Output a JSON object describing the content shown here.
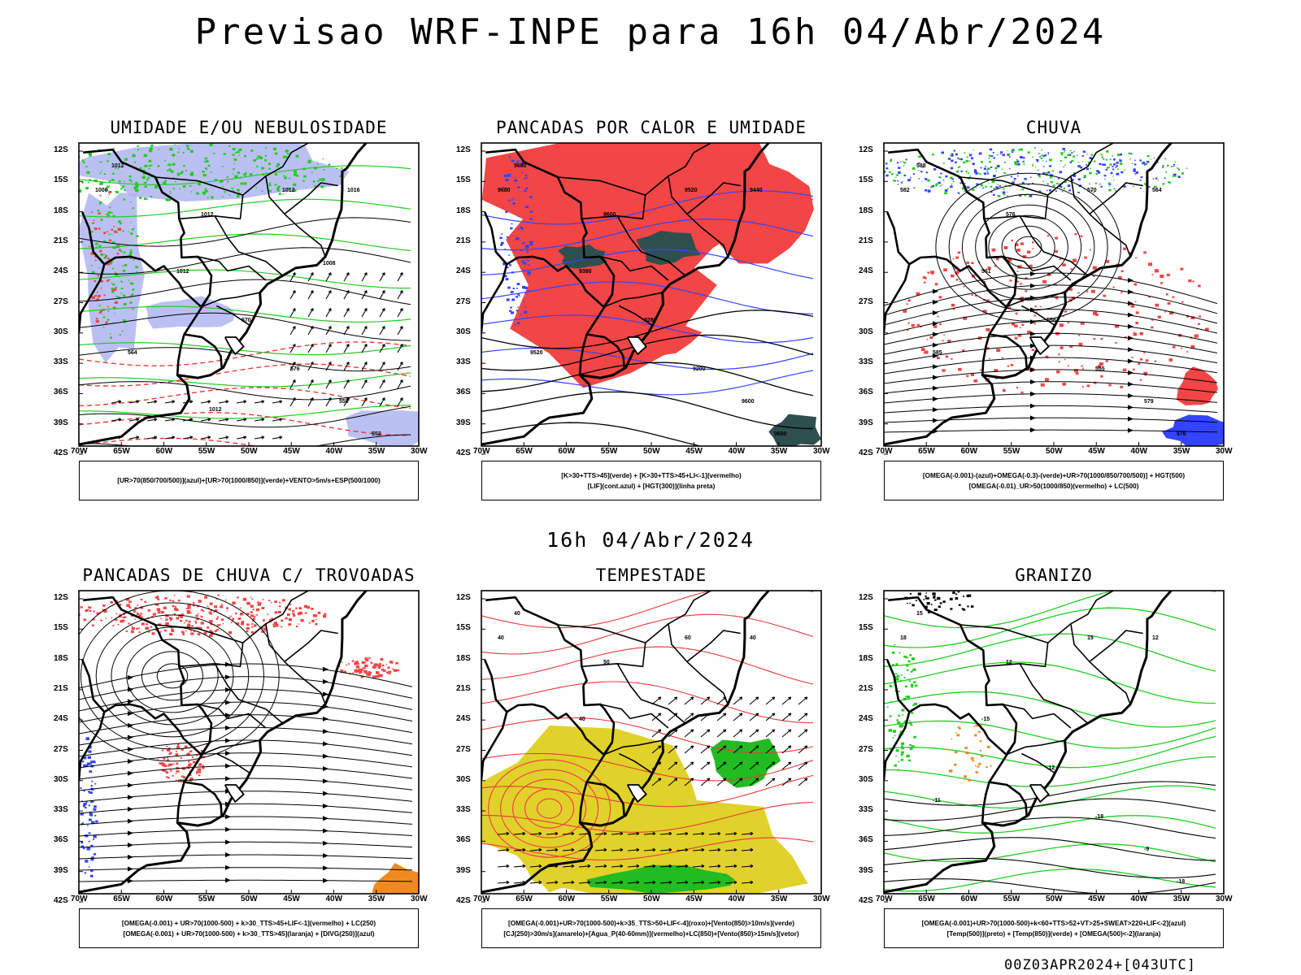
{
  "title": "Previsao WRF-INPE  para 16h 04/Abr/2024",
  "middle_date": "16h 04/Abr/2024",
  "footer_stamp": "00Z03APR2024+[043UTC]",
  "latitude_labels": [
    "12S",
    "15S",
    "18S",
    "21S",
    "24S",
    "27S",
    "30S",
    "33S",
    "36S",
    "39S",
    "42S"
  ],
  "longitude_labels": [
    "70W",
    "65W",
    "60W",
    "55W",
    "50W",
    "45W",
    "40W",
    "35W",
    "30W"
  ],
  "panels": [
    {
      "title": "UMIDADE E/OU NEBULOSIDADE",
      "legend": [
        "[UR>70(850/700/500)](azul)+[UR>70(1000/850)](verde)+VENTO>5m/s+ESP(500/1000)"
      ],
      "contour_labels": [
        "1012",
        "1008",
        "1012",
        "1012",
        "1016",
        "1012",
        "570",
        "576",
        "564",
        "558",
        "552",
        "1012",
        "1008"
      ]
    },
    {
      "title": "PANCADAS POR CALOR E UMIDADE",
      "legend": [
        "[K>30+TTS>45](verde)  +  [K>30+TTS>45+LI<-1](vermelho)",
        "[LIF](cont.azul)  +  [HGT(300)](linha preta)"
      ],
      "contour_labels": [
        "9680",
        "9680",
        "9600",
        "9520",
        "9440",
        "9380",
        "9280",
        "9200",
        "9520",
        "9600",
        "9680"
      ]
    },
    {
      "title": "CHUVA",
      "legend": [
        "[OMEGA(-0.001)-(azul)+OMEGA(-0.3)-(verde)+UR>70(1000/850/700/500)]  +  HGT(500)",
        "[OMEGA(-0.01)_UR>50(1000/850)(vermelho)  +  LC(500)"
      ],
      "contour_labels": [
        "588",
        "582",
        "576",
        "570",
        "564",
        "561",
        "558",
        "555",
        "585",
        "579",
        "576"
      ]
    },
    {
      "title": "PANCADAS DE CHUVA C/ TROVOADAS",
      "legend": [
        "[OMEGA(-0.001)  +  UR>70(1000-500)  +  k>30_TTS>45+LIF<-1](vermelho)  +  LC(250)",
        "[OMEGA(-0.001)  +  UR>70(1000-500)  +  k>30_TTS>45](laranja)  +  [DIVG(250)](azul)"
      ],
      "contour_labels": []
    },
    {
      "title": "TEMPESTADE",
      "legend": [
        "[OMEGA(-0.001)+UR>70(1000-500)+k>35_TTS>50+LIF<-4](roxo)+[Vento(850)>10m/s](verde)",
        "[CJ(250)>30m/s](amarelo)+[Agua_P(40-60mm)](vermelho)+LC(850)+[Vento(850)>15m/s](vetor)"
      ],
      "contour_labels": [
        "40",
        "40",
        "50",
        "60",
        "40",
        "40"
      ]
    },
    {
      "title": "GRANIZO",
      "legend": [
        "[OMEGA(-0.001)+UR>70(1000-500)+k<60+TTS>52+VT>25+SWEAT>220+LIF<-2](azul)",
        "[Temp(500)](preto)  +  [Temp(850)](verde)  +  [OMEGA(500)<-2](laranja)"
      ],
      "contour_labels": [
        "15",
        "18",
        "12",
        "15",
        "12",
        "-15",
        "-12",
        "-18",
        "-11",
        "-9",
        "-18"
      ]
    }
  ],
  "colors": {
    "coast": "#000000",
    "red_field": "#f24545",
    "green": "#22cc22",
    "blue": "#3344ff",
    "lavender": "#aab0f0",
    "dark_teal": "#2f4f4f",
    "yellow": "#e0d22a",
    "orange": "#f08a20",
    "dashed_red": "#e83a3a"
  }
}
